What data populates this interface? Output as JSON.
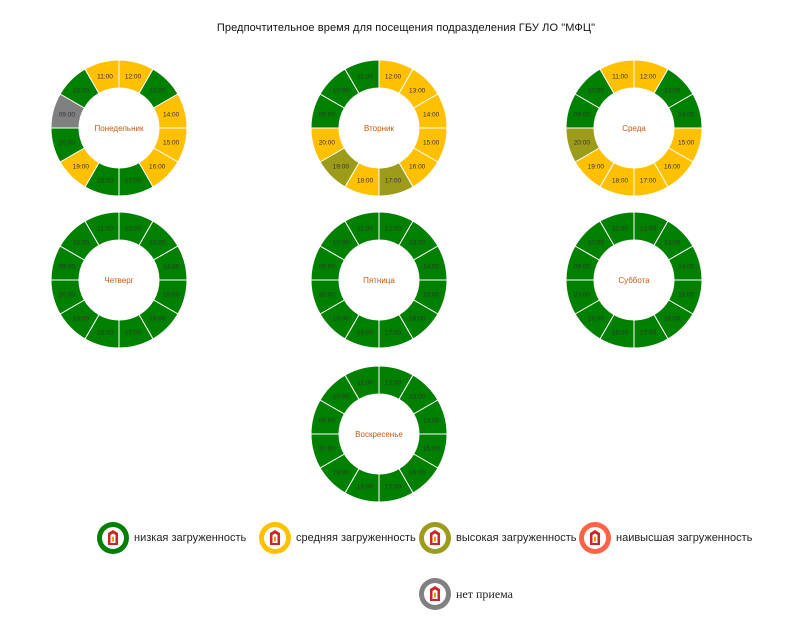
{
  "title": "Предпочтительное время для посещения подразделения ГБУ ЛО \"МФЦ\"",
  "colors": {
    "low": "#008000",
    "medium": "#ffc000",
    "high": "#9c9c1a",
    "highest": "#ff6347",
    "closed": "#808080",
    "day_label": "#c55a11",
    "hour_label": "#333333"
  },
  "legend": [
    {
      "key": "low",
      "label": "низкая загруженность"
    },
    {
      "key": "medium",
      "label": "средняя загруженность"
    },
    {
      "key": "high",
      "label": "высокая загруженность"
    },
    {
      "key": "highest",
      "label": "наивысшая загруженность"
    },
    {
      "key": "closed",
      "label": "нет приема"
    }
  ],
  "chart_data": {
    "type": "donut",
    "title": "Предпочтительное время для посещения подразделения ГБУ ЛО \"МФЦ\"",
    "hours": [
      "12:00",
      "13:00",
      "14:00",
      "15:00",
      "16:00",
      "17:00",
      "18:00",
      "19:00",
      "20:00",
      "09:00",
      "10:00",
      "11:00"
    ],
    "days": [
      {
        "name": "Понедельник",
        "load": [
          "medium",
          "low",
          "medium",
          "medium",
          "medium",
          "low",
          "low",
          "medium",
          "low",
          "closed",
          "low",
          "medium"
        ]
      },
      {
        "name": "Вторник",
        "load": [
          "medium",
          "medium",
          "medium",
          "medium",
          "medium",
          "high",
          "medium",
          "high",
          "medium",
          "low",
          "low",
          "low"
        ]
      },
      {
        "name": "Среда",
        "load": [
          "medium",
          "low",
          "low",
          "medium",
          "medium",
          "medium",
          "medium",
          "medium",
          "high",
          "low",
          "low",
          "medium"
        ]
      },
      {
        "name": "Четверг",
        "load": [
          "low",
          "low",
          "low",
          "low",
          "low",
          "low",
          "low",
          "low",
          "low",
          "low",
          "low",
          "low"
        ]
      },
      {
        "name": "Пятница",
        "load": [
          "low",
          "low",
          "low",
          "low",
          "low",
          "low",
          "low",
          "low",
          "low",
          "low",
          "low",
          "low"
        ]
      },
      {
        "name": "Суббота",
        "load": [
          "low",
          "low",
          "low",
          "low",
          "low",
          "low",
          "low",
          "low",
          "low",
          "low",
          "low",
          "low"
        ]
      },
      {
        "name": "Воскресенье",
        "load": [
          "low",
          "low",
          "low",
          "low",
          "low",
          "low",
          "low",
          "low",
          "low",
          "low",
          "low",
          "low"
        ]
      }
    ]
  }
}
